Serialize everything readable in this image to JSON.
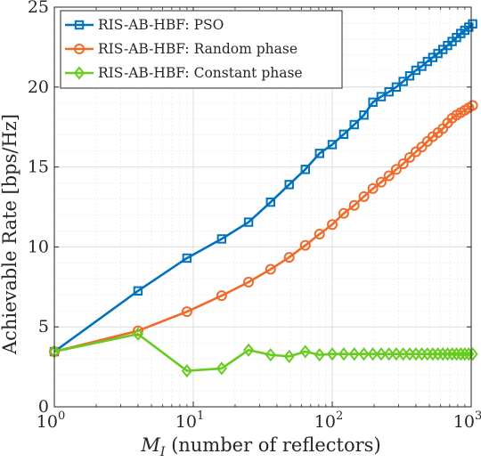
{
  "chart_data": {
    "type": "line",
    "xscale": "log",
    "xlim": [
      1,
      1000
    ],
    "ylim": [
      0,
      25
    ],
    "xticks": [
      1,
      10,
      100,
      1000
    ],
    "xtick_labels": [
      {
        "base": "10",
        "exp": "0"
      },
      {
        "base": "10",
        "exp": "1"
      },
      {
        "base": "10",
        "exp": "2"
      },
      {
        "base": "10",
        "exp": "3"
      }
    ],
    "yticks": [
      0,
      5,
      10,
      15,
      20,
      25
    ],
    "ytick_labels": [
      "0",
      "5",
      "10",
      "15",
      "20",
      "25"
    ],
    "grid": true,
    "minor_grid": true,
    "legend_position": "top-left",
    "xlabel": {
      "symbol": "M",
      "subscript": "I",
      "rest": " (number of reflectors)"
    },
    "ylabel": "Achievable Rate [bps/Hz]",
    "x": [
      1,
      4,
      9,
      16,
      25,
      36,
      49,
      64,
      81,
      100,
      121,
      144,
      169,
      196,
      225,
      256,
      289,
      324,
      361,
      400,
      441,
      484,
      529,
      576,
      625,
      676,
      729,
      784,
      841,
      900,
      961,
      1024
    ],
    "series": [
      {
        "name": "RIS-AB-HBF: PSO",
        "color": "#0072BD",
        "marker": "square",
        "values": [
          3.45,
          7.25,
          9.3,
          10.5,
          11.55,
          12.8,
          13.9,
          14.85,
          15.85,
          16.4,
          17.05,
          17.65,
          18.25,
          19.05,
          19.4,
          19.7,
          20.0,
          20.35,
          20.7,
          21.05,
          21.3,
          21.6,
          21.85,
          22.1,
          22.35,
          22.6,
          22.85,
          23.1,
          23.35,
          23.55,
          23.75,
          23.95
        ]
      },
      {
        "name": "RIS-AB-HBF: Random phase",
        "color": "#F06A2B",
        "marker": "circle",
        "values": [
          3.45,
          4.75,
          5.95,
          6.95,
          7.8,
          8.6,
          9.35,
          10.1,
          10.8,
          11.4,
          12.1,
          12.6,
          13.15,
          13.65,
          14.05,
          14.45,
          14.85,
          15.2,
          15.6,
          15.95,
          16.25,
          16.6,
          16.9,
          17.15,
          17.4,
          17.75,
          18.05,
          18.25,
          18.4,
          18.55,
          18.7,
          18.85
        ]
      },
      {
        "name": "RIS-AB-HBF: Constant phase",
        "color": "#66CC1F",
        "marker": "diamond",
        "values": [
          3.45,
          4.55,
          2.25,
          2.4,
          3.55,
          3.25,
          3.15,
          3.45,
          3.25,
          3.3,
          3.3,
          3.3,
          3.3,
          3.3,
          3.3,
          3.3,
          3.3,
          3.3,
          3.3,
          3.3,
          3.3,
          3.3,
          3.3,
          3.3,
          3.3,
          3.3,
          3.3,
          3.3,
          3.3,
          3.3,
          3.3,
          3.3
        ]
      }
    ]
  }
}
